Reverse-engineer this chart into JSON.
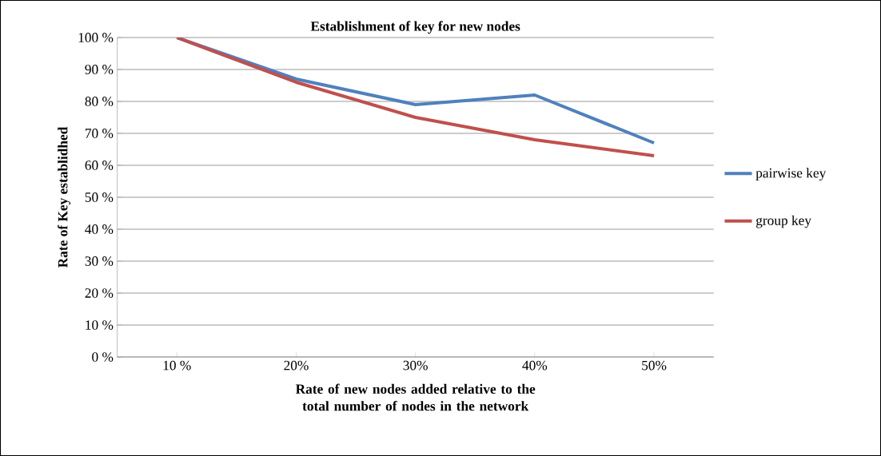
{
  "chart_data": {
    "type": "line",
    "title": "Establishment of key for new nodes",
    "xlabel": "Rate of new nodes added relative to the total number of nodes in the network",
    "ylabel": "Rate of Key establidhed",
    "categories": [
      "10 %",
      "20%",
      "30%",
      "40%",
      "50%"
    ],
    "series": [
      {
        "name": "pairwise key",
        "color": "#4f81bd",
        "values": [
          100,
          87,
          79,
          82,
          67
        ]
      },
      {
        "name": "group key",
        "color": "#c0504d",
        "values": [
          100,
          86,
          75,
          68,
          63
        ]
      }
    ],
    "ylim": [
      0,
      100
    ],
    "yticks": [
      {
        "value": 0,
        "label": "0 %"
      },
      {
        "value": 10,
        "label": "10 %"
      },
      {
        "value": 20,
        "label": "20 %"
      },
      {
        "value": 30,
        "label": "30 %"
      },
      {
        "value": 40,
        "label": "40 %"
      },
      {
        "value": 50,
        "label": "50 %"
      },
      {
        "value": 60,
        "label": "60 %"
      },
      {
        "value": 70,
        "label": "70 %"
      },
      {
        "value": 80,
        "label": "80 %"
      },
      {
        "value": 90,
        "label": "90 %"
      },
      {
        "value": 100,
        "label": "100 %"
      }
    ],
    "grid": "y",
    "legend": "right",
    "marker": "none",
    "line_style": "solid"
  }
}
